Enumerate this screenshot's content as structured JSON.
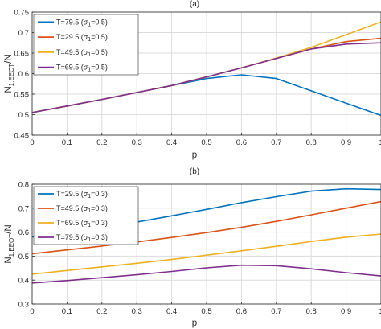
{
  "chart_data": [
    {
      "type": "line",
      "title": "(a)",
      "xlabel": "p",
      "ylabel_main": "N",
      "ylabel_sub": "1,EEOT",
      "ylabel_tail": "/N",
      "xlim": [
        0,
        1
      ],
      "ylim": [
        0.45,
        0.75
      ],
      "grid": true,
      "legend_position": "top-left",
      "x_ticks": [
        "0",
        "0.1",
        "0.2",
        "0.3",
        "0.4",
        "0.5",
        "0.6",
        "0.7",
        "0.8",
        "0.9",
        "1"
      ],
      "y_ticks": [
        "0.45",
        "0.5",
        "0.55",
        "0.6",
        "0.65",
        "0.7",
        "0.75"
      ],
      "x": [
        0,
        0.1,
        0.2,
        0.3,
        0.4,
        0.5,
        0.6,
        0.7,
        0.8,
        0.9,
        1.0
      ],
      "series": [
        {
          "legend_main": "T=79.5 (",
          "legend_sym": "σ",
          "legend_sub": "1",
          "legend_tail": "=0.5)",
          "color": "#0072bd",
          "values": [
            0.505,
            0.521,
            0.537,
            0.554,
            0.571,
            0.588,
            0.597,
            0.588,
            0.558,
            0.528,
            0.498
          ]
        },
        {
          "legend_main": "T=29.5 (",
          "legend_sym": "σ",
          "legend_sub": "1",
          "legend_tail": "=0.5)",
          "color": "#d95319",
          "values": [
            0.505,
            0.521,
            0.537,
            0.554,
            0.571,
            0.592,
            0.614,
            0.637,
            0.66,
            0.678,
            0.686
          ]
        },
        {
          "legend_main": "T=49.5 (",
          "legend_sym": "σ",
          "legend_sub": "1",
          "legend_tail": "=0.5)",
          "color": "#edb120",
          "values": [
            0.505,
            0.521,
            0.537,
            0.554,
            0.571,
            0.592,
            0.614,
            0.638,
            0.664,
            0.695,
            0.726
          ]
        },
        {
          "legend_main": "T=69.5 (",
          "legend_sym": "σ",
          "legend_sub": "1",
          "legend_tail": "=0.5)",
          "color": "#7e2f8e",
          "values": [
            0.505,
            0.521,
            0.537,
            0.554,
            0.571,
            0.592,
            0.614,
            0.637,
            0.66,
            0.672,
            0.675
          ]
        }
      ]
    },
    {
      "type": "line",
      "title": "(b)",
      "xlabel": "p",
      "ylabel_main": "N",
      "ylabel_sub": "1,EEOT",
      "ylabel_tail": "/N",
      "xlim": [
        0,
        1
      ],
      "ylim": [
        0.3,
        0.8
      ],
      "grid": true,
      "legend_position": "top-left",
      "x_ticks": [
        "0",
        "0.1",
        "0.2",
        "0.3",
        "0.4",
        "0.5",
        "0.6",
        "0.7",
        "0.8",
        "0.9",
        "1"
      ],
      "y_ticks": [
        "0.3",
        "0.4",
        "0.5",
        "0.6",
        "0.7",
        "0.8"
      ],
      "x": [
        0,
        0.1,
        0.2,
        0.3,
        0.4,
        0.5,
        0.6,
        0.7,
        0.8,
        0.9,
        1.0
      ],
      "series": [
        {
          "legend_main": "T=29.5 (",
          "legend_sym": "σ",
          "legend_sub": "1",
          "legend_tail": "=0.3)",
          "color": "#0072bd",
          "values": [
            0.58,
            0.598,
            0.617,
            0.642,
            0.668,
            0.695,
            0.723,
            0.748,
            0.771,
            0.781,
            0.778
          ]
        },
        {
          "legend_main": "T=49.5 (",
          "legend_sym": "σ",
          "legend_sub": "1",
          "legend_tail": "=0.3)",
          "color": "#d95319",
          "values": [
            0.51,
            0.526,
            0.542,
            0.559,
            0.578,
            0.598,
            0.62,
            0.645,
            0.672,
            0.7,
            0.728
          ]
        },
        {
          "legend_main": "T=69.5 (",
          "legend_sym": "σ",
          "legend_sub": "1",
          "legend_tail": "=0.3)",
          "color": "#edb120",
          "values": [
            0.425,
            0.44,
            0.455,
            0.47,
            0.486,
            0.504,
            0.522,
            0.541,
            0.561,
            0.579,
            0.592
          ]
        },
        {
          "legend_main": "T=79.5 (",
          "legend_sym": "σ",
          "legend_sub": "1",
          "legend_tail": "=0.3)",
          "color": "#7e2f8e",
          "values": [
            0.388,
            0.398,
            0.41,
            0.422,
            0.436,
            0.451,
            0.462,
            0.46,
            0.447,
            0.431,
            0.417
          ]
        }
      ]
    }
  ]
}
